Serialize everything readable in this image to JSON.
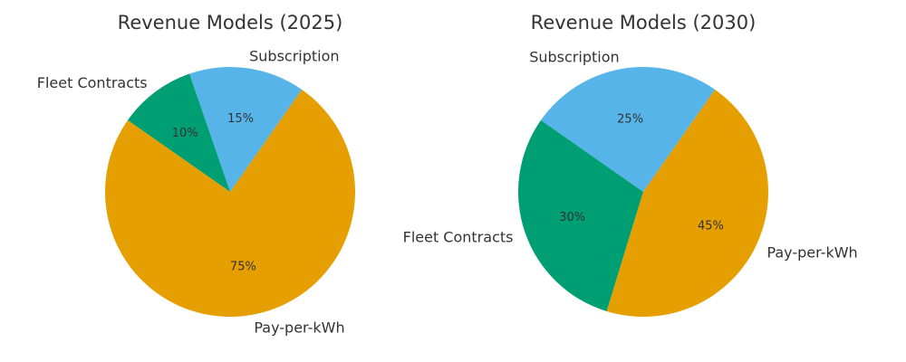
{
  "chart_data": [
    {
      "type": "pie",
      "title": "Revenue Models (2025)",
      "slices": [
        {
          "label": "Subscription",
          "value": 15,
          "pct_label": "15%",
          "color": "#56B4E9"
        },
        {
          "label": "Fleet Contracts",
          "value": 10,
          "pct_label": "10%",
          "color": "#009E73"
        },
        {
          "label": "Pay-per-kWh",
          "value": 75,
          "pct_label": "75%",
          "color": "#E69F00"
        }
      ]
    },
    {
      "type": "pie",
      "title": "Revenue Models (2030)",
      "slices": [
        {
          "label": "Subscription",
          "value": 25,
          "pct_label": "25%",
          "color": "#56B4E9"
        },
        {
          "label": "Fleet Contracts",
          "value": 30,
          "pct_label": "30%",
          "color": "#009E73"
        },
        {
          "label": "Pay-per-kWh",
          "value": 45,
          "pct_label": "45%",
          "color": "#E69F00"
        }
      ]
    }
  ]
}
